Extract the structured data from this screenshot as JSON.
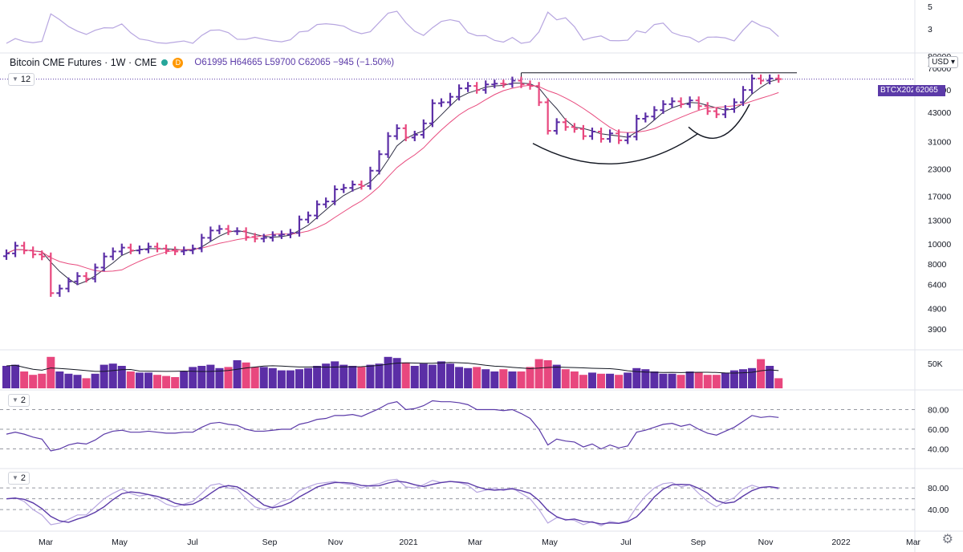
{
  "legend": {
    "title": "Bitcoin CME Futures · 1W · CME",
    "status_badge": "D",
    "ohlc": "O61995  H64665  L59700  C62065  −945  (−1.50%)",
    "main_pane_button": "12",
    "currency": "USD"
  },
  "last_price": {
    "symbol_label": "BTCX2021",
    "value_label": "62065"
  },
  "panes": {
    "volume_label": "50K",
    "rsi_button": "2",
    "stoch_button": "2"
  },
  "colors": {
    "up": "#5b2ea6",
    "down": "#e8477e",
    "ma_short": "#2f2f45",
    "ma_long": "#e84b7e",
    "osc": "#5b3aa8",
    "osc_light": "#b7a6e0"
  },
  "chart_data": {
    "type": "ohlc",
    "price_axis_ticks": [
      "80000",
      "70000",
      "55000",
      "43000",
      "31000",
      "23000",
      "17000",
      "13000",
      "10000",
      "8000",
      "6400",
      "4900",
      "3900"
    ],
    "price_axis_scale": "log",
    "volume_axis_ticks": [
      "50K"
    ],
    "rsi_axis_ticks": [
      "80.00",
      "60.00",
      "40.00"
    ],
    "stoch_axis_ticks": [
      "80.00",
      "40.00"
    ],
    "top_axis_ticks": [
      "5",
      "3"
    ],
    "x_axis_ticks": [
      "Mar",
      "May",
      "Jul",
      "Sep",
      "Nov",
      "2021",
      "Mar",
      "May",
      "Jul",
      "Sep",
      "Nov",
      "2022",
      "Mar"
    ],
    "last_close": 62065,
    "resistance_level": 66500,
    "closes": [
      9000,
      9800,
      9300,
      8900,
      8700,
      5800,
      6100,
      6600,
      7000,
      6800,
      7700,
      8700,
      9200,
      9600,
      9300,
      9400,
      9700,
      9500,
      9300,
      9200,
      9300,
      9500,
      10700,
      11600,
      11800,
      11500,
      11500,
      10800,
      10600,
      10700,
      11000,
      11100,
      11300,
      13100,
      13700,
      15500,
      16000,
      18300,
      18600,
      19300,
      19000,
      22500,
      27000,
      33000,
      36000,
      32500,
      33500,
      38000,
      47500,
      48000,
      51000,
      56000,
      57500,
      55000,
      58500,
      59000,
      58800,
      61000,
      58500,
      57500,
      48000,
      35000,
      38500,
      36500,
      35700,
      33000,
      34700,
      32000,
      34000,
      31500,
      32800,
      40000,
      41000,
      44000,
      47000,
      48500,
      47000,
      49000,
      46000,
      43500,
      42000,
      44500,
      48000,
      55000,
      62500,
      61000,
      62500,
      62065
    ],
    "volumes": [
      40,
      42,
      30,
      24,
      26,
      56,
      30,
      26,
      24,
      18,
      26,
      42,
      44,
      40,
      30,
      28,
      28,
      24,
      22,
      20,
      30,
      38,
      40,
      42,
      36,
      38,
      50,
      46,
      38,
      38,
      36,
      32,
      32,
      34,
      36,
      40,
      44,
      48,
      42,
      40,
      38,
      42,
      44,
      56,
      54,
      46,
      40,
      44,
      42,
      48,
      44,
      38,
      36,
      38,
      34,
      30,
      34,
      30,
      30,
      38,
      52,
      50,
      42,
      34,
      30,
      24,
      28,
      26,
      26,
      24,
      28,
      36,
      34,
      30,
      26,
      26,
      24,
      30,
      28,
      24,
      24,
      28,
      32,
      34,
      36,
      52,
      40,
      18
    ],
    "rsi": [
      55,
      57,
      55,
      52,
      50,
      38,
      40,
      44,
      46,
      45,
      49,
      55,
      58,
      59,
      57,
      57,
      58,
      57,
      56,
      56,
      57,
      57,
      62,
      66,
      67,
      65,
      64,
      60,
      58,
      58,
      59,
      60,
      60,
      65,
      67,
      70,
      71,
      74,
      74,
      75,
      73,
      77,
      81,
      86,
      88,
      80,
      81,
      84,
      89,
      88,
      88,
      87,
      85,
      80,
      80,
      80,
      79,
      80,
      76,
      71,
      60,
      44,
      50,
      48,
      47,
      42,
      45,
      40,
      44,
      41,
      43,
      57,
      59,
      62,
      65,
      66,
      63,
      65,
      60,
      56,
      54,
      58,
      62,
      68,
      74,
      72,
      73,
      72
    ],
    "stoch": [
      60,
      62,
      55,
      40,
      30,
      12,
      15,
      22,
      30,
      30,
      45,
      60,
      70,
      78,
      70,
      65,
      68,
      60,
      50,
      45,
      50,
      55,
      70,
      85,
      88,
      80,
      78,
      60,
      45,
      40,
      45,
      55,
      60,
      75,
      82,
      88,
      90,
      92,
      88,
      86,
      80,
      85,
      88,
      94,
      96,
      82,
      80,
      86,
      94,
      90,
      92,
      90,
      85,
      72,
      76,
      80,
      75,
      80,
      70,
      60,
      40,
      15,
      25,
      22,
      20,
      12,
      18,
      10,
      18,
      15,
      20,
      45,
      65,
      80,
      88,
      90,
      82,
      86,
      70,
      55,
      45,
      55,
      62,
      78,
      85,
      80,
      82,
      78
    ]
  }
}
